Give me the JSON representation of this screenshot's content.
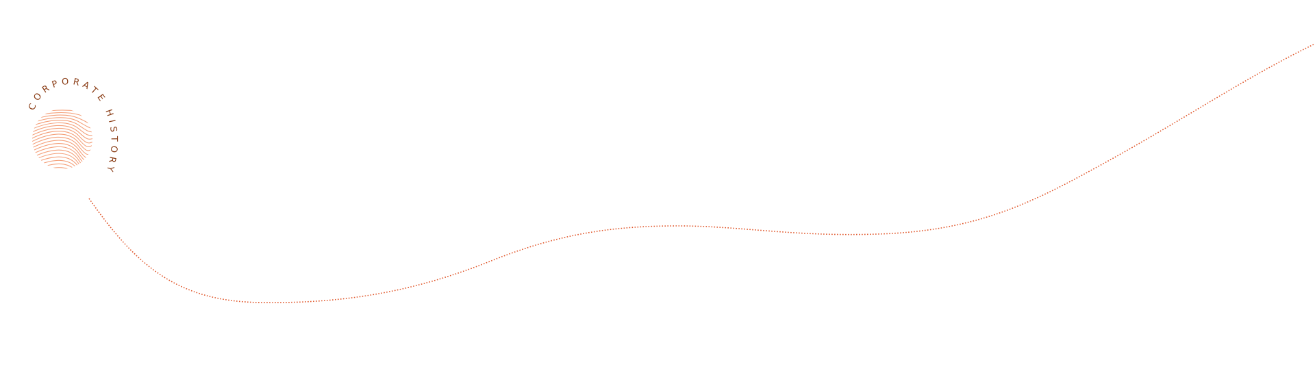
{
  "logo": {
    "text": "CORPORATE HISTORY",
    "text_color": "#8a3d16",
    "lines_color": "#f4a07a"
  },
  "timeline": {
    "path_color": "#e0562a",
    "style": "dotted"
  }
}
